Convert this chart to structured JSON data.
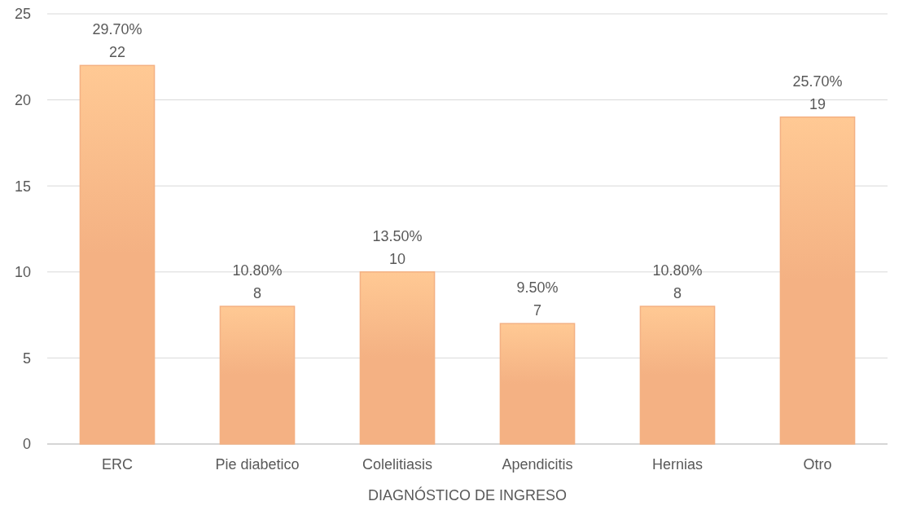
{
  "chart_data": {
    "type": "bar",
    "xlabel": "DIAGNÓSTICO DE INGRESO",
    "categories": [
      "ERC",
      "Pie diabetico",
      "Colelitiasis",
      "Apendicitis",
      "Hernias",
      "Otro"
    ],
    "values": [
      22,
      8,
      10,
      7,
      8,
      19
    ],
    "value_labels": [
      "29.70%\n22",
      "10.80%\n8",
      "13.50%\n10",
      "9.50%\n7",
      "10.80%\n8",
      "25.70%\n19"
    ],
    "color": "#f4b183",
    "ylim": [
      0,
      25
    ],
    "yticks": [
      0,
      5,
      10,
      15,
      20,
      25
    ],
    "grid": "y"
  }
}
